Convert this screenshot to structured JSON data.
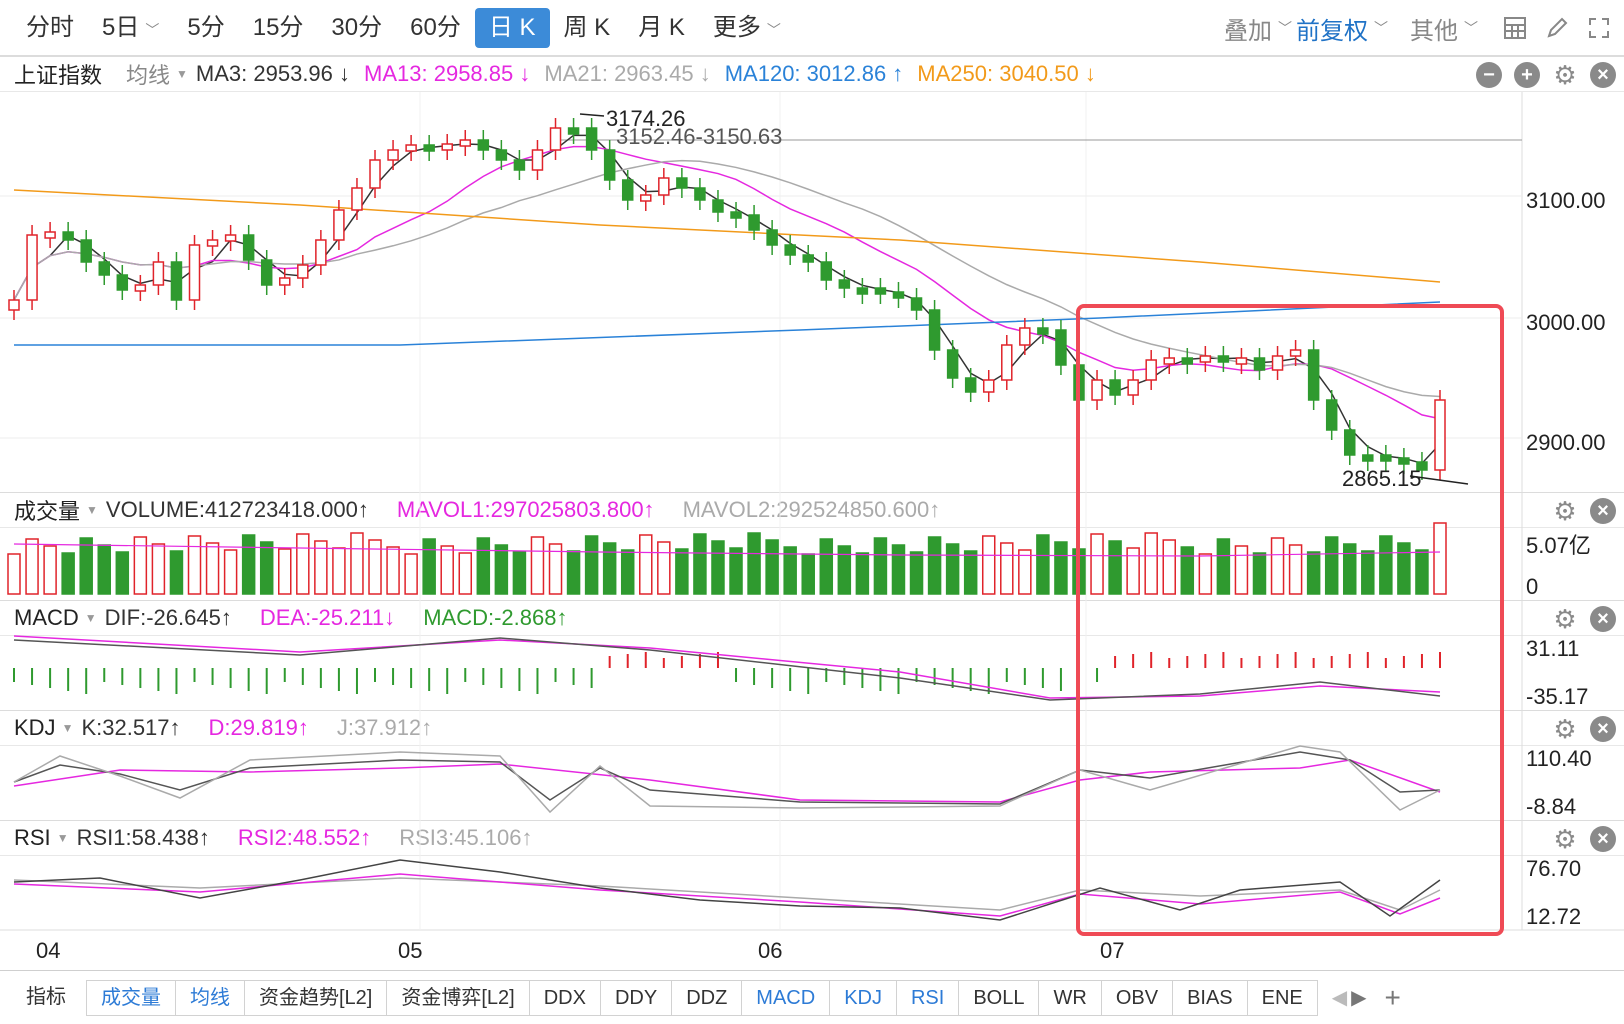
{
  "toolbar": {
    "periods": [
      {
        "label": "分时"
      },
      {
        "label": "5日",
        "dropdown": true
      },
      {
        "label": "5分"
      },
      {
        "label": "15分"
      },
      {
        "label": "30分"
      },
      {
        "label": "60分"
      },
      {
        "label": "日 K",
        "active": true
      },
      {
        "label": "周 K"
      },
      {
        "label": "月 K"
      },
      {
        "label": "更多",
        "dropdown": true
      }
    ],
    "overlay_label": "叠加",
    "adjust_label": "前复权",
    "other_label": "其他",
    "icons": [
      "grid-icon",
      "pen-icon",
      "fullscreen-icon"
    ]
  },
  "main_panel": {
    "symbol": "上证指数",
    "ma_selector": "均线",
    "ma": [
      {
        "label": "MA3: 2953.96 ↓",
        "color": "#333333"
      },
      {
        "label": "MA13: 2958.85 ↓",
        "color": "#e528e0"
      },
      {
        "label": "MA21: 2963.45 ↓",
        "color": "#aaaaaa"
      },
      {
        "label": "MA120: 3012.86 ↑",
        "color": "#2a82d8"
      },
      {
        "label": "MA250: 3040.50 ↓",
        "color": "#f29a1a"
      }
    ],
    "y_ticks": [
      "3100.00",
      "3000.00",
      "2900.00"
    ],
    "annotations": {
      "high": "3174.26",
      "range": "3152.46-3150.63",
      "low": "2865.15"
    }
  },
  "volume_panel": {
    "name": "成交量",
    "values": [
      {
        "label": "VOLUME:412723418.000↑",
        "color": "#333333"
      },
      {
        "label": "MAVOL1:297025803.800↑",
        "color": "#e528e0"
      },
      {
        "label": "MAVOL2:292524850.600↑",
        "color": "#aaaaaa"
      }
    ],
    "y_ticks": [
      "5.07亿",
      "0"
    ]
  },
  "macd_panel": {
    "name": "MACD",
    "values": [
      {
        "label": "DIF:-26.645↑",
        "color": "#333333"
      },
      {
        "label": "DEA:-25.211↓",
        "color": "#e528e0"
      },
      {
        "label": "MACD:-2.868↑",
        "color": "#2f9a2f"
      }
    ],
    "y_ticks": [
      "31.11",
      "-35.17"
    ]
  },
  "kdj_panel": {
    "name": "KDJ",
    "values": [
      {
        "label": "K:32.517↑",
        "color": "#333333"
      },
      {
        "label": "D:29.819↑",
        "color": "#e528e0"
      },
      {
        "label": "J:37.912↑",
        "color": "#aaaaaa"
      }
    ],
    "y_ticks": [
      "110.40",
      "-8.84"
    ]
  },
  "rsi_panel": {
    "name": "RSI",
    "values": [
      {
        "label": "RSI1:58.438↑",
        "color": "#333333"
      },
      {
        "label": "RSI2:48.552↑",
        "color": "#e528e0"
      },
      {
        "label": "RSI3:45.106↑",
        "color": "#aaaaaa"
      }
    ],
    "y_ticks": [
      "76.70",
      "12.72"
    ]
  },
  "x_axis": {
    "months": [
      "04",
      "05",
      "06",
      "07"
    ]
  },
  "bottom_tabs": [
    {
      "label": "指标",
      "blue": false
    },
    {
      "label": "成交量",
      "blue": true
    },
    {
      "label": "均线",
      "blue": true
    },
    {
      "label": "资金趋势[L2]",
      "blue": false
    },
    {
      "label": "资金博弈[L2]",
      "blue": false
    },
    {
      "label": "DDX",
      "blue": false
    },
    {
      "label": "DDY",
      "blue": false
    },
    {
      "label": "DDZ",
      "blue": false
    },
    {
      "label": "MACD",
      "blue": true
    },
    {
      "label": "KDJ",
      "blue": true
    },
    {
      "label": "RSI",
      "blue": true
    },
    {
      "label": "BOLL",
      "blue": false
    },
    {
      "label": "WR",
      "blue": false
    },
    {
      "label": "OBV",
      "blue": false
    },
    {
      "label": "BIAS",
      "blue": false
    },
    {
      "label": "ENE",
      "blue": false
    }
  ],
  "colors": {
    "up": "#e0232a",
    "down": "#2f9a2f",
    "highlight": "#ef4a55"
  }
}
